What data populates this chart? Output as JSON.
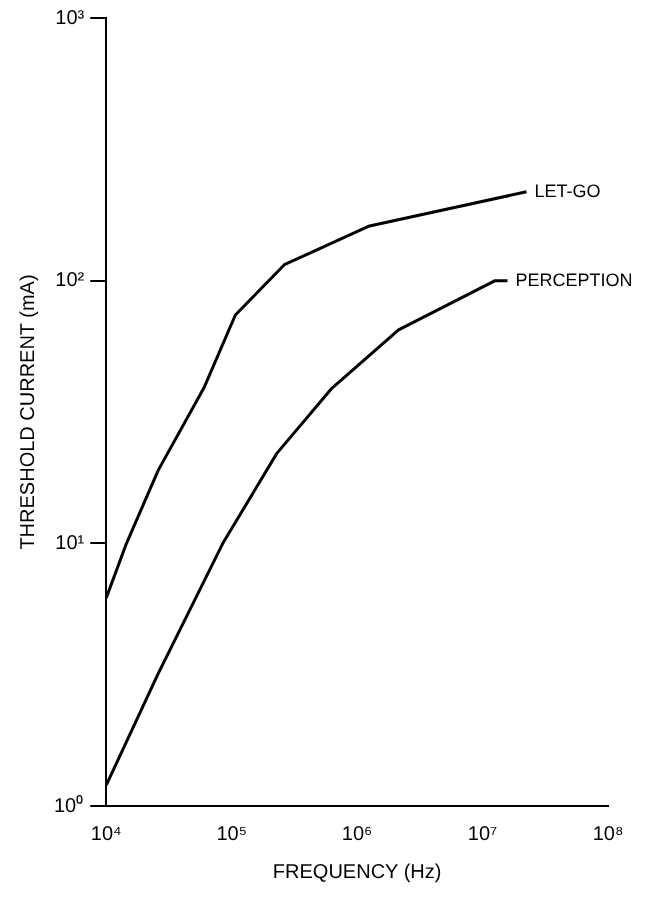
{
  "chart_data": {
    "type": "line",
    "xlabel": "FREQUENCY (Hz)",
    "ylabel": "THRESHOLD CURRENT (mA)",
    "log": "xy",
    "grid": false,
    "legend": false,
    "marker": "none",
    "xlim": [
      10000,
      100000000
    ],
    "ylim": [
      1,
      1000
    ],
    "xticks": [
      {
        "value": 10000,
        "label": "10⁴"
      },
      {
        "value": 100000,
        "label": "10⁵"
      },
      {
        "value": 1000000,
        "label": "10⁶"
      },
      {
        "value": 10000000,
        "label": "10⁷"
      },
      {
        "value": 100000000,
        "label": "10⁸"
      }
    ],
    "yticks": [
      {
        "value": 1,
        "label": "10⁰"
      },
      {
        "value": 10,
        "label": "10¹"
      },
      {
        "value": 100,
        "label": "10²"
      },
      {
        "value": 1000,
        "label": "10³"
      }
    ],
    "series": [
      {
        "name": "LET-GO",
        "color": "#000000",
        "x": [
          10000,
          14500,
          26000,
          60000,
          107000,
          263000,
          1230000,
          22400000
        ],
        "values": [
          6.2,
          10,
          19,
          39,
          74,
          115,
          161,
          218
        ]
      },
      {
        "name": "PERCEPTION",
        "color": "#000000",
        "x": [
          10000,
          26000,
          85000,
          229000,
          631000,
          2140000,
          12600000,
          15800000
        ],
        "values": [
          1.2,
          3.2,
          10,
          22,
          39,
          65,
          100,
          100
        ]
      }
    ]
  }
}
